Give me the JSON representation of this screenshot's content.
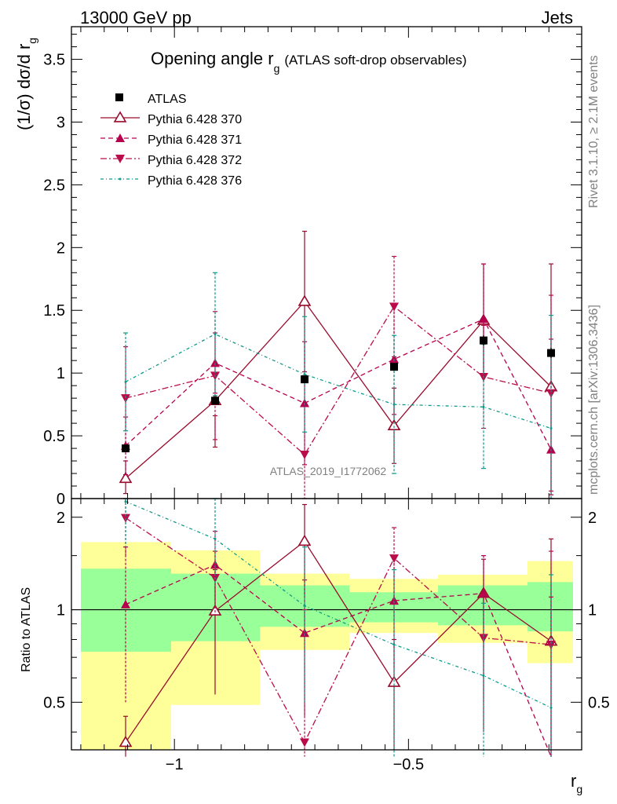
{
  "header": {
    "left": "13000 GeV pp",
    "right": "Jets"
  },
  "side_labels": {
    "rivet": "Rivet 3.1.10, ≥ 2.1M events",
    "mcplots": "mcplots.cern.ch [arXiv:1306.3436]"
  },
  "main_panel": {
    "title_main": "Opening angle r",
    "title_sub": "g",
    "title_tail": "(ATLAS soft-drop observables)",
    "ylabel_main": "(1/σ) dσ/d r",
    "ylabel_sub": "g",
    "watermark": "ATLAS_2019_I1772062",
    "yticks": [
      "0",
      "0.5",
      "1",
      "1.5",
      "2",
      "2.5",
      "3",
      "3.5"
    ]
  },
  "ratio_panel": {
    "ylabel": "Ratio to ATLAS",
    "yticks": [
      "0.5",
      "1",
      "2"
    ]
  },
  "xaxis": {
    "label_main": "r",
    "label_sub": "g",
    "ticks": [
      "−1",
      "−0.5"
    ]
  },
  "colors": {
    "data": "#000000",
    "s370": "#990a2c",
    "s371": "#b7004d",
    "s372": "#ba0c4a",
    "s376": "#0d9a8a",
    "band_inner": "#99ff99",
    "band_outer": "#ffff99"
  },
  "chart_data": {
    "type": "scatter",
    "xlim": [
      -1.22,
      -0.13
    ],
    "ylim_main": [
      0,
      3.76
    ],
    "ylim_ratio": [
      0.35,
      2.3
    ],
    "x_bin_edges": [
      -1.2,
      -1.0,
      -0.8,
      -0.6,
      -0.4,
      -0.2,
      -0.15
    ],
    "x": [
      -1.1,
      -0.9,
      -0.7,
      -0.5,
      -0.3,
      -0.15
    ],
    "legend": {
      "placement": "top-left",
      "entries": [
        "ATLAS",
        "Pythia 6.428 370",
        "Pythia 6.428 371",
        "Pythia 6.428 372",
        "Pythia 6.428 376"
      ]
    },
    "data": {
      "name": "ATLAS",
      "values": [
        0.4,
        0.78,
        0.95,
        1.05,
        1.26,
        1.16
      ]
    },
    "series": [
      {
        "name": "Pythia 6.428 370",
        "values": [
          0.16,
          0.78,
          1.57,
          0.58,
          1.42,
          0.89
        ],
        "err_up": [
          0.3,
          0.66,
          2.13,
          0.88,
          1.87,
          1.87
        ],
        "err_down": [
          0.04,
          0.41,
          1.01,
          0.28,
          0.97,
          0.03
        ],
        "ratio": [
          0.37,
          0.99,
          1.67,
          0.58,
          1.13,
          0.79
        ],
        "ratio_err_up": [
          0.45,
          1.35,
          2.2,
          0.8,
          1.46,
          1.7
        ],
        "ratio_err_down": [
          0.3,
          0.53,
          1.1,
          0.35,
          0.4,
          0.3
        ]
      },
      {
        "name": "Pythia 6.428 371",
        "values": [
          0.42,
          1.08,
          0.76,
          1.11,
          1.43,
          0.39
        ],
        "err_up": [
          0.65,
          1.32,
          1.25,
          1.55,
          1.87,
          1.27
        ],
        "err_down": [
          0.19,
          0.84,
          0.27,
          0.67,
          0.99,
          0.0
        ],
        "ratio": [
          1.04,
          1.4,
          0.84,
          1.07,
          1.13,
          0.33
        ],
        "ratio_err_up": [
          1.6,
          1.8,
          1.25,
          1.5,
          1.5,
          1.1
        ],
        "ratio_err_down": [
          0.5,
          1.0,
          0.45,
          0.65,
          0.75,
          0.2
        ]
      },
      {
        "name": "Pythia 6.428 372",
        "values": [
          0.8,
          0.98,
          0.35,
          1.53,
          0.97,
          0.84
        ],
        "err_up": [
          1.21,
          1.49,
          0.98,
          1.93,
          1.38,
          1.62
        ],
        "err_down": [
          0.39,
          0.47,
          0.0,
          1.13,
          0.56,
          0.06
        ],
        "ratio": [
          1.99,
          1.27,
          0.37,
          1.47,
          0.81,
          0.77
        ],
        "ratio_err_up": [
          2.3,
          1.55,
          1.0,
          1.85,
          1.12,
          1.55
        ],
        "ratio_err_down": [
          1.5,
          0.95,
          0.3,
          1.05,
          0.5,
          0.3
        ]
      },
      {
        "name": "Pythia 6.428 376",
        "values": [
          0.93,
          1.31,
          0.99,
          0.75,
          0.73,
          0.56
        ],
        "err_up": [
          1.32,
          1.8,
          1.45,
          1.3,
          1.23,
          1.46
        ],
        "err_down": [
          0.54,
          0.82,
          0.53,
          0.2,
          0.24,
          0.0
        ],
        "ratio": [
          2.25,
          1.7,
          1.03,
          0.77,
          0.61,
          0.48
        ],
        "ratio_err_up": [
          2.3,
          2.3,
          1.6,
          1.35,
          1.05,
          1.3
        ],
        "ratio_err_down": [
          1.6,
          1.2,
          0.5,
          0.3,
          0.3,
          0.3
        ]
      }
    ],
    "data_err_up": [
      0.43,
      0.81,
      0.98,
      1.08,
      1.3,
      1.2
    ],
    "data_err_down": [
      0.37,
      0.75,
      0.92,
      1.02,
      1.22,
      1.12
    ],
    "band_inner": {
      "lo": [
        0.73,
        0.79,
        0.88,
        0.91,
        0.89,
        0.85
      ],
      "hi": [
        1.36,
        1.31,
        1.2,
        1.14,
        1.2,
        1.23
      ]
    },
    "band_outer": {
      "lo": [
        0.35,
        0.49,
        0.74,
        0.84,
        0.78,
        0.67
      ],
      "hi": [
        1.66,
        1.56,
        1.31,
        1.26,
        1.3,
        1.44
      ]
    }
  }
}
